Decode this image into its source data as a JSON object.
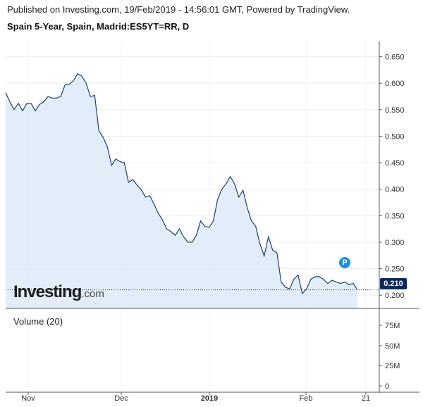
{
  "header": {
    "published": "Published on Investing.com, 19/Feb/2019 - 14:56:01 GMT, Powered by TradingView."
  },
  "chart_title": "Spain 5-Year, Spain, Madrid:ES5YT=RR, D",
  "volume_label": "Volume (20)",
  "logo": {
    "main": "Investing",
    "suffix": ".com"
  },
  "marker_label": "P",
  "current_value_label": "0.210",
  "colors": {
    "line": "#1d3f6e",
    "fill": "#dbe9f7",
    "price_tag": "#0b2a5a",
    "marker": "#1a8fe3"
  },
  "chart_data": {
    "type": "area",
    "title": "Spain 5-Year, Spain, Madrid:ES5YT=RR, D",
    "y_ticks": [
      "0.650",
      "0.600",
      "0.550",
      "0.500",
      "0.450",
      "0.400",
      "0.350",
      "0.300",
      "0.250",
      "0.200"
    ],
    "y_range": [
      0.175,
      0.68
    ],
    "x_tick_labels": [
      "Nov",
      "Dec",
      "2019",
      "Feb",
      "21"
    ],
    "volume_ticks": [
      "75M",
      "50M",
      "25M",
      "0"
    ],
    "current_value": 0.21,
    "grid": true,
    "series": [
      {
        "values": [
          0.582,
          0.565,
          0.55,
          0.562,
          0.548,
          0.562,
          0.562,
          0.548,
          0.56,
          0.565,
          0.575,
          0.572,
          0.572,
          0.575,
          0.597,
          0.598,
          0.605,
          0.618,
          0.613,
          0.6,
          0.575,
          0.577,
          0.51,
          0.498,
          0.48,
          0.445,
          0.457,
          0.452,
          0.45,
          0.413,
          0.418,
          0.408,
          0.399,
          0.385,
          0.388,
          0.372,
          0.355,
          0.342,
          0.325,
          0.32,
          0.313,
          0.325,
          0.31,
          0.3,
          0.3,
          0.313,
          0.34,
          0.33,
          0.328,
          0.34,
          0.38,
          0.4,
          0.41,
          0.424,
          0.41,
          0.385,
          0.398,
          0.365,
          0.34,
          0.33,
          0.297,
          0.274,
          0.31,
          0.285,
          0.28,
          0.225,
          0.215,
          0.212,
          0.23,
          0.238,
          0.203,
          0.212,
          0.23,
          0.235,
          0.235,
          0.23,
          0.222,
          0.228,
          0.225,
          0.222,
          0.225,
          0.22,
          0.222,
          0.21
        ]
      }
    ]
  }
}
